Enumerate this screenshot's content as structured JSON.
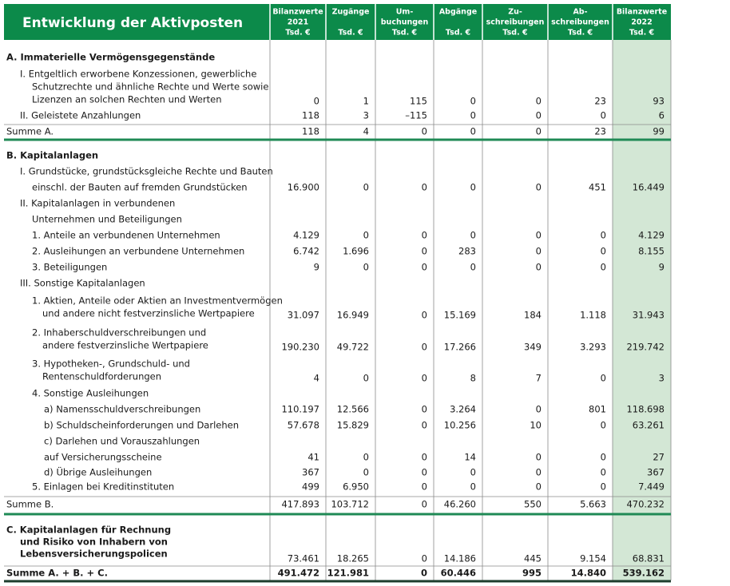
{
  "header": {
    "title": "Entwicklung der Aktivposten",
    "columns": [
      [
        "Bilanzwerte",
        "2021",
        "Tsd. €"
      ],
      [
        "Zugänge",
        "Tsd. €"
      ],
      [
        "Um-",
        "buchungen",
        "Tsd. €"
      ],
      [
        "Abgänge",
        "Tsd. €"
      ],
      [
        "Zu-",
        "schreibungen",
        "Tsd. €"
      ],
      [
        "Ab-",
        "schreibungen",
        "Tsd. €"
      ],
      [
        "Bilanzwerte",
        "2022",
        "Tsd. €"
      ]
    ]
  },
  "table": {
    "rows": [
      {
        "label": [
          "A. Immaterielle Vermögensgegenstände"
        ]
      },
      {
        "label": [
          "I. Entgeltlich erworbene Konzessionen, gewerbliche",
          "Schutzrechte und ähnliche Rechte und Werte sowie",
          "Lizenzen an solchen Rechten und Werten"
        ],
        "values": [
          "0",
          "1",
          "115",
          "0",
          "0",
          "23",
          "93"
        ]
      },
      {
        "label": [
          "II. Geleistete Anzahlungen"
        ],
        "values": [
          "118",
          "3",
          "–115",
          "0",
          "0",
          "0",
          "6"
        ]
      },
      {
        "label": [
          "Summe A."
        ],
        "values": [
          "118",
          "4",
          "0",
          "0",
          "0",
          "23",
          "99"
        ]
      },
      {
        "label": [
          "B. Kapitalanlagen"
        ]
      },
      {
        "label": [
          "I. Grundstücke, grundstücksgleiche Rechte und Bauten",
          "einschl. der Bauten auf fremden Grundstücken"
        ],
        "values": [
          "16.900",
          "0",
          "0",
          "0",
          "0",
          "451",
          "16.449"
        ]
      },
      {
        "label": [
          "II. Kapitalanlagen in verbundenen",
          "Unternehmen und Beteiligungen"
        ]
      },
      {
        "label": [
          "1. Anteile an verbundenen Unternehmen"
        ],
        "values": [
          "4.129",
          "0",
          "0",
          "0",
          "0",
          "0",
          "4.129"
        ]
      },
      {
        "label": [
          "2. Ausleihungen an verbundene Unternehmen"
        ],
        "values": [
          "6.742",
          "1.696",
          "0",
          "283",
          "0",
          "0",
          "8.155"
        ]
      },
      {
        "label": [
          "3. Beteiligungen"
        ],
        "values": [
          "9",
          "0",
          "0",
          "0",
          "0",
          "0",
          "9"
        ]
      },
      {
        "label": [
          "III. Sonstige Kapitalanlagen"
        ]
      },
      {
        "label": [
          "1. Aktien, Anteile oder Aktien an Investmentvermögen",
          "und andere nicht festverzinsliche Wertpapiere"
        ],
        "values": [
          "31.097",
          "16.949",
          "0",
          "15.169",
          "184",
          "1.118",
          "31.943"
        ]
      },
      {
        "label": [
          "2. Inhaberschuldverschreibungen und",
          "andere festverzinsliche Wertpapiere"
        ],
        "values": [
          "190.230",
          "49.722",
          "0",
          "17.266",
          "349",
          "3.293",
          "219.742"
        ]
      },
      {
        "label": [
          "3. Hypotheken-, Grundschuld- und",
          "Rentenschuldforderungen"
        ],
        "values": [
          "4",
          "0",
          "0",
          "8",
          "7",
          "0",
          "3"
        ]
      },
      {
        "label": [
          "4. Sonstige Ausleihungen"
        ]
      },
      {
        "label": [
          "a) Namensschuldverschreibungen"
        ],
        "values": [
          "110.197",
          "12.566",
          "0",
          "3.264",
          "0",
          "801",
          "118.698"
        ]
      },
      {
        "label": [
          "b) Schuldscheinforderungen und Darlehen"
        ],
        "values": [
          "57.678",
          "15.829",
          "0",
          "10.256",
          "10",
          "0",
          "63.261"
        ]
      },
      {
        "label": [
          "c) Darlehen und Vorauszahlungen",
          "auf Versicherungsscheine"
        ],
        "values": [
          "41",
          "0",
          "0",
          "14",
          "0",
          "0",
          "27"
        ]
      },
      {
        "label": [
          "d) Übrige Ausleihungen"
        ],
        "values": [
          "367",
          "0",
          "0",
          "0",
          "0",
          "0",
          "367"
        ]
      },
      {
        "label": [
          "5. Einlagen bei Kreditinstituten"
        ],
        "values": [
          "499",
          "6.950",
          "0",
          "0",
          "0",
          "0",
          "7.449"
        ]
      },
      {
        "label": [
          "Summe B."
        ],
        "values": [
          "417.893",
          "103.712",
          "0",
          "46.260",
          "550",
          "5.663",
          "470.232"
        ]
      },
      {
        "label": [
          "C. Kapitalanlagen für Rechnung",
          "und Risiko von Inhabern von",
          "Lebensversicherungspolicen"
        ],
        "values": [
          "73.461",
          "18.265",
          "0",
          "14.186",
          "445",
          "9.154",
          "68.831"
        ]
      },
      {
        "label": [
          "Summe A. + B. + C."
        ],
        "values": [
          "491.472",
          "121.981",
          "0",
          "60.446",
          "995",
          "14.840",
          "539.162"
        ]
      }
    ]
  }
}
